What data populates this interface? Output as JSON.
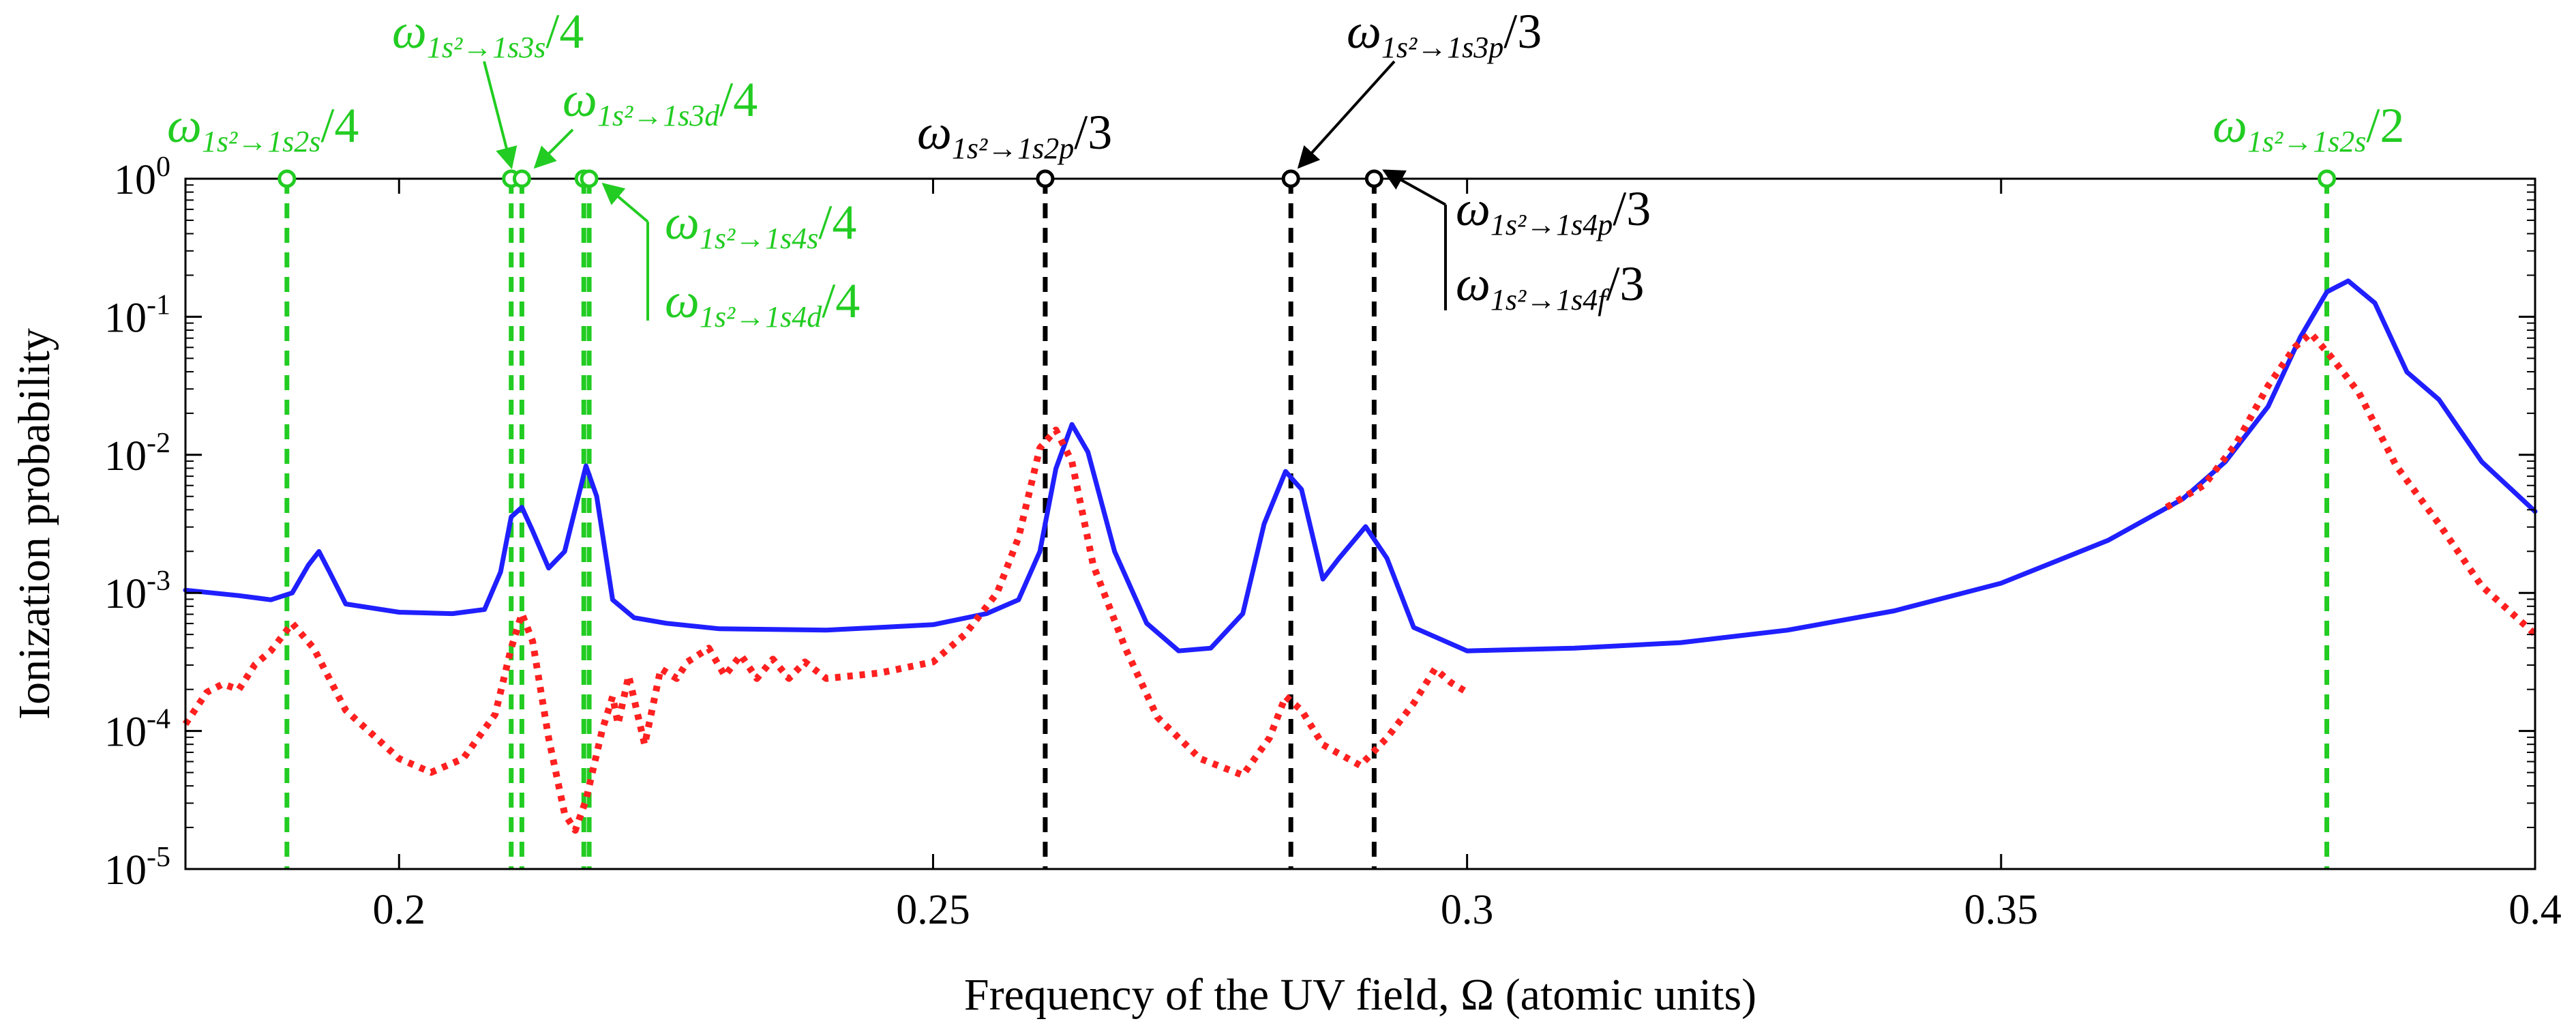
{
  "chart_data": {
    "type": "line",
    "xlabel": "Frequency of the UV field, Ω (atomic units)",
    "ylabel": "Ionization probability",
    "xlim": [
      0.18,
      0.4
    ],
    "ylim_log10": [
      -5,
      0
    ],
    "x_ticks": [
      {
        "value": 0.2,
        "label": "0.2"
      },
      {
        "value": 0.25,
        "label": "0.25"
      },
      {
        "value": 0.3,
        "label": "0.3"
      },
      {
        "value": 0.35,
        "label": "0.35"
      },
      {
        "value": 0.4,
        "label": "0.4"
      }
    ],
    "y_ticks": [
      {
        "exp": 0,
        "base": "10",
        "label": "0"
      },
      {
        "exp": -1,
        "base": "10",
        "label": "-1"
      },
      {
        "exp": -2,
        "base": "10",
        "label": "-2"
      },
      {
        "exp": -3,
        "base": "10",
        "label": "-3"
      },
      {
        "exp": -4,
        "base": "10",
        "label": "-4"
      },
      {
        "exp": -5,
        "base": "10",
        "label": "-5"
      }
    ],
    "colors": {
      "blue": "#1f1fff",
      "red": "#ff2020",
      "green": "#22cc22",
      "black": "#000000"
    },
    "series": [
      {
        "name": "solid-blue",
        "style": "solid",
        "color": "#1f1fff",
        "points": [
          [
            0.18,
            -2.98
          ],
          [
            0.185,
            -3.02
          ],
          [
            0.188,
            -3.05
          ],
          [
            0.19,
            -3.0
          ],
          [
            0.1915,
            -2.8
          ],
          [
            0.1925,
            -2.7
          ],
          [
            0.1935,
            -2.85
          ],
          [
            0.195,
            -3.08
          ],
          [
            0.2,
            -3.14
          ],
          [
            0.205,
            -3.15
          ],
          [
            0.208,
            -3.12
          ],
          [
            0.2095,
            -2.85
          ],
          [
            0.2105,
            -2.45
          ],
          [
            0.2115,
            -2.38
          ],
          [
            0.2125,
            -2.55
          ],
          [
            0.214,
            -2.82
          ],
          [
            0.2155,
            -2.7
          ],
          [
            0.2175,
            -2.08
          ],
          [
            0.2185,
            -2.3
          ],
          [
            0.22,
            -3.05
          ],
          [
            0.222,
            -3.18
          ],
          [
            0.225,
            -3.22
          ],
          [
            0.23,
            -3.26
          ],
          [
            0.24,
            -3.27
          ],
          [
            0.25,
            -3.23
          ],
          [
            0.255,
            -3.15
          ],
          [
            0.258,
            -3.05
          ],
          [
            0.26,
            -2.7
          ],
          [
            0.2615,
            -2.1
          ],
          [
            0.263,
            -1.78
          ],
          [
            0.2645,
            -1.98
          ],
          [
            0.267,
            -2.7
          ],
          [
            0.27,
            -3.22
          ],
          [
            0.273,
            -3.42
          ],
          [
            0.276,
            -3.4
          ],
          [
            0.279,
            -3.15
          ],
          [
            0.281,
            -2.5
          ],
          [
            0.283,
            -2.12
          ],
          [
            0.2845,
            -2.25
          ],
          [
            0.2865,
            -2.9
          ],
          [
            0.288,
            -2.75
          ],
          [
            0.2905,
            -2.52
          ],
          [
            0.2925,
            -2.75
          ],
          [
            0.295,
            -3.25
          ],
          [
            0.3,
            -3.42
          ],
          [
            0.31,
            -3.4
          ],
          [
            0.32,
            -3.36
          ],
          [
            0.33,
            -3.27
          ],
          [
            0.34,
            -3.13
          ],
          [
            0.35,
            -2.93
          ],
          [
            0.36,
            -2.62
          ],
          [
            0.367,
            -2.32
          ],
          [
            0.371,
            -2.05
          ],
          [
            0.375,
            -1.65
          ],
          [
            0.378,
            -1.15
          ],
          [
            0.3805,
            -0.82
          ],
          [
            0.3825,
            -0.74
          ],
          [
            0.385,
            -0.9
          ],
          [
            0.388,
            -1.4
          ],
          [
            0.391,
            -1.6
          ],
          [
            0.395,
            -2.05
          ],
          [
            0.4,
            -2.41
          ]
        ]
      },
      {
        "name": "dotted-red-low",
        "style": "dotted",
        "color": "#ff2020",
        "points": [
          [
            0.18,
            -3.95
          ],
          [
            0.182,
            -3.72
          ],
          [
            0.1835,
            -3.66
          ],
          [
            0.185,
            -3.7
          ],
          [
            0.1865,
            -3.52
          ],
          [
            0.188,
            -3.42
          ],
          [
            0.19,
            -3.22
          ],
          [
            0.192,
            -3.4
          ],
          [
            0.195,
            -3.85
          ],
          [
            0.2,
            -4.2
          ],
          [
            0.203,
            -4.3
          ],
          [
            0.206,
            -4.2
          ],
          [
            0.209,
            -3.88
          ],
          [
            0.2105,
            -3.4
          ],
          [
            0.2115,
            -3.15
          ],
          [
            0.2125,
            -3.35
          ],
          [
            0.214,
            -4.05
          ],
          [
            0.2155,
            -4.6
          ],
          [
            0.2165,
            -4.72
          ],
          [
            0.2175,
            -4.5
          ],
          [
            0.219,
            -4.0
          ],
          [
            0.22,
            -3.75
          ],
          [
            0.2205,
            -3.95
          ],
          [
            0.2215,
            -3.6
          ],
          [
            0.223,
            -4.1
          ],
          [
            0.2245,
            -3.55
          ],
          [
            0.226,
            -3.62
          ],
          [
            0.227,
            -3.5
          ],
          [
            0.229,
            -3.4
          ],
          [
            0.2305,
            -3.6
          ],
          [
            0.232,
            -3.45
          ],
          [
            0.2335,
            -3.62
          ],
          [
            0.235,
            -3.48
          ],
          [
            0.2365,
            -3.62
          ],
          [
            0.238,
            -3.5
          ],
          [
            0.24,
            -3.62
          ],
          [
            0.245,
            -3.58
          ],
          [
            0.25,
            -3.5
          ],
          [
            0.253,
            -3.3
          ],
          [
            0.256,
            -3.0
          ],
          [
            0.258,
            -2.6
          ],
          [
            0.26,
            -1.95
          ],
          [
            0.2615,
            -1.82
          ],
          [
            0.263,
            -2.05
          ],
          [
            0.265,
            -2.8
          ],
          [
            0.268,
            -3.4
          ],
          [
            0.271,
            -3.9
          ],
          [
            0.275,
            -4.2
          ],
          [
            0.279,
            -4.32
          ],
          [
            0.2815,
            -4.05
          ],
          [
            0.283,
            -3.75
          ],
          [
            0.2845,
            -3.85
          ],
          [
            0.2865,
            -4.1
          ],
          [
            0.29,
            -4.25
          ],
          [
            0.2925,
            -4.05
          ],
          [
            0.295,
            -3.8
          ],
          [
            0.297,
            -3.55
          ],
          [
            0.2985,
            -3.65
          ],
          [
            0.3,
            -3.72
          ]
        ]
      },
      {
        "name": "dotted-red-high",
        "style": "dotted",
        "color": "#ff2020",
        "points": [
          [
            0.3655,
            -2.38
          ],
          [
            0.369,
            -2.22
          ],
          [
            0.372,
            -1.92
          ],
          [
            0.375,
            -1.5
          ],
          [
            0.3775,
            -1.22
          ],
          [
            0.379,
            -1.12
          ],
          [
            0.381,
            -1.3
          ],
          [
            0.3835,
            -1.55
          ],
          [
            0.387,
            -2.08
          ],
          [
            0.391,
            -2.5
          ],
          [
            0.395,
            -2.95
          ],
          [
            0.4,
            -3.3
          ]
        ]
      }
    ],
    "markers": [
      {
        "x": 0.1895,
        "color": "#22cc22"
      },
      {
        "x": 0.2105,
        "color": "#22cc22"
      },
      {
        "x": 0.2115,
        "color": "#22cc22"
      },
      {
        "x": 0.2173,
        "color": "#22cc22"
      },
      {
        "x": 0.2178,
        "color": "#22cc22"
      },
      {
        "x": 0.2605,
        "color": "#000000"
      },
      {
        "x": 0.2835,
        "color": "#000000"
      },
      {
        "x": 0.2913,
        "color": "#000000"
      },
      {
        "x": 0.3805,
        "color": "#22cc22"
      }
    ],
    "annotations": [
      {
        "sub": "1s²→1s2s",
        "div": "/4",
        "color": "#22cc22"
      },
      {
        "sub": "1s²→1s3s",
        "div": "/4",
        "color": "#22cc22"
      },
      {
        "sub": "1s²→1s3d",
        "div": "/4",
        "color": "#22cc22"
      },
      {
        "sub": "1s²→1s4s",
        "div": "/4",
        "color": "#22cc22"
      },
      {
        "sub": "1s²→1s4d",
        "div": "/4",
        "color": "#22cc22"
      },
      {
        "sub": "1s²→1s2p",
        "div": "/3",
        "color": "#000000"
      },
      {
        "sub": "1s²→1s3p",
        "div": "/3",
        "color": "#000000"
      },
      {
        "sub": "1s²→1s4p",
        "div": "/3",
        "color": "#000000"
      },
      {
        "sub": "1s²→1s4f",
        "div": "/3",
        "color": "#000000"
      },
      {
        "sub": "1s²→1s2s",
        "div": "/2",
        "color": "#22cc22"
      }
    ],
    "omega_symbol": "ω"
  }
}
